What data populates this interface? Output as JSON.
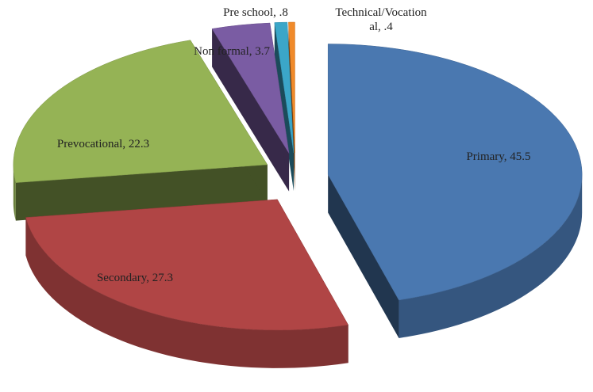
{
  "chart_data": {
    "type": "pie3d",
    "values": [
      45.5,
      27.3,
      22.3,
      3.7,
      0.8,
      0.4
    ],
    "value_labels": [
      "Primary, 45.5",
      "Secondary, 27.3",
      "Prevocational, 22.3",
      "Non formal, 3.7",
      "Pre school, .8",
      "Technical/Vocational, .4"
    ],
    "colors": [
      "#4a78b0",
      "#b04545",
      "#95b355",
      "#7a5ca3",
      "#3ba6c8",
      "#f08a2a"
    ]
  }
}
